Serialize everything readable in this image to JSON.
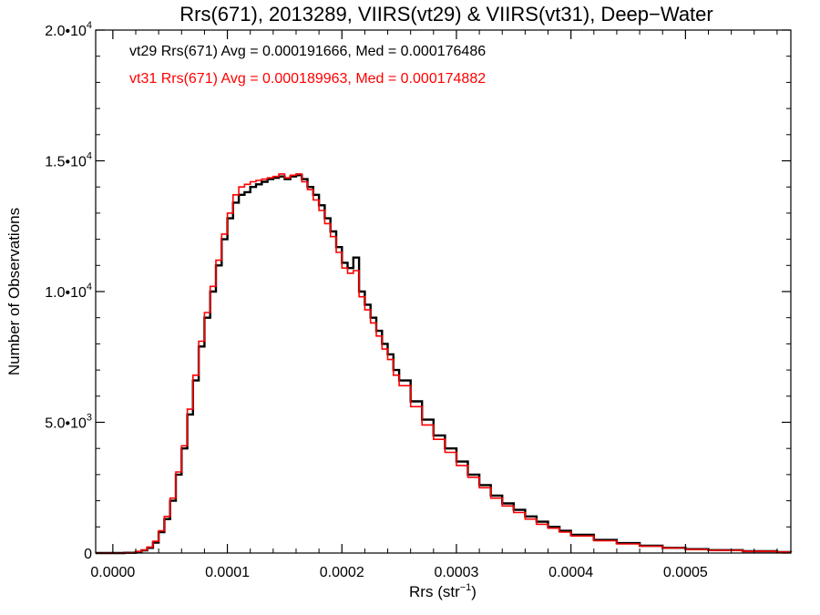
{
  "chart_data": {
    "type": "line",
    "title": "Rrs(671), 2013289, VIIRS(vt29) & VIIRS(vt31), Deep−Water",
    "xlabel": "Rrs (str",
    "xlabel_sup": "−1",
    "xlabel_end": ")",
    "ylabel": "Number of Observations",
    "xlim": [
      -1.5e-05,
      0.000592
    ],
    "ylim": [
      0,
      20000
    ],
    "x_ticks": [
      {
        "value": 0.0,
        "label": "0.0000"
      },
      {
        "value": 0.0001,
        "label": "0.0001"
      },
      {
        "value": 0.0002,
        "label": "0.0002"
      },
      {
        "value": 0.0003,
        "label": "0.0003"
      },
      {
        "value": 0.0004,
        "label": "0.0004"
      },
      {
        "value": 0.0005,
        "label": "0.0005"
      }
    ],
    "y_ticks": [
      {
        "value": 0,
        "label": "0",
        "exp": ""
      },
      {
        "value": 5000,
        "label": "5.0•10",
        "exp": "3"
      },
      {
        "value": 10000,
        "label": "1.0•10",
        "exp": "4"
      },
      {
        "value": 15000,
        "label": "1.5•10",
        "exp": "4"
      },
      {
        "value": 20000,
        "label": "2.0•10",
        "exp": "4"
      }
    ],
    "annotations": [
      {
        "text": "vt29 Rrs(671) Avg = 0.000191666, Med = 0.000176486",
        "color": "#000000"
      },
      {
        "text": "vt31 Rrs(671) Avg = 0.000189963, Med = 0.000174882",
        "color": "#ff0000"
      }
    ],
    "grid": false,
    "series": [
      {
        "name": "vt29",
        "color": "#000000",
        "render": "step",
        "x": [
          -1.5e-05,
          0.0,
          1e-05,
          2e-05,
          2.5e-05,
          3e-05,
          3.5e-05,
          4e-05,
          4.5e-05,
          5e-05,
          5.5e-05,
          6e-05,
          6.5e-05,
          7e-05,
          7.5e-05,
          8e-05,
          8.5e-05,
          9e-05,
          9.5e-05,
          0.0001,
          0.000105,
          0.00011,
          0.000115,
          0.00012,
          0.000125,
          0.00013,
          0.000135,
          0.00014,
          0.000145,
          0.00015,
          0.000155,
          0.00016,
          0.000165,
          0.00017,
          0.000175,
          0.00018,
          0.000185,
          0.00019,
          0.000195,
          0.0002,
          0.000205,
          0.00021,
          0.000215,
          0.00022,
          0.000225,
          0.00023,
          0.000235,
          0.00024,
          0.000245,
          0.00025,
          0.00026,
          0.00027,
          0.00028,
          0.00029,
          0.0003,
          0.00031,
          0.00032,
          0.00033,
          0.00034,
          0.00035,
          0.00036,
          0.00037,
          0.00038,
          0.00039,
          0.0004,
          0.00042,
          0.00044,
          0.00046,
          0.00048,
          0.0005,
          0.00052,
          0.00055,
          0.00058,
          0.000592
        ],
        "y": [
          0,
          0,
          10,
          50,
          100,
          200,
          400,
          800,
          1300,
          2000,
          3000,
          4000,
          5300,
          6600,
          7900,
          9000,
          10000,
          11000,
          12000,
          12800,
          13400,
          13700,
          13800,
          14000,
          14100,
          14200,
          14300,
          14350,
          14400,
          14300,
          14400,
          14450,
          14300,
          14000,
          13700,
          13300,
          12800,
          12300,
          11700,
          11100,
          10900,
          11300,
          10000,
          9500,
          9000,
          8500,
          8000,
          7600,
          7000,
          6600,
          5800,
          5100,
          4500,
          4000,
          3500,
          3000,
          2600,
          2200,
          1900,
          1650,
          1400,
          1200,
          1000,
          850,
          700,
          500,
          380,
          280,
          200,
          150,
          110,
          70,
          40,
          30
        ]
      },
      {
        "name": "vt31",
        "color": "#ff0000",
        "render": "step",
        "x": [
          -1.5e-05,
          0.0,
          1e-05,
          2e-05,
          2.5e-05,
          3e-05,
          3.5e-05,
          4e-05,
          4.5e-05,
          5e-05,
          5.5e-05,
          6e-05,
          6.5e-05,
          7e-05,
          7.5e-05,
          8e-05,
          8.5e-05,
          9e-05,
          9.5e-05,
          0.0001,
          0.000105,
          0.00011,
          0.000115,
          0.00012,
          0.000125,
          0.00013,
          0.000135,
          0.00014,
          0.000145,
          0.00015,
          0.000155,
          0.00016,
          0.000165,
          0.00017,
          0.000175,
          0.00018,
          0.000185,
          0.00019,
          0.000195,
          0.0002,
          0.000205,
          0.00021,
          0.000215,
          0.00022,
          0.000225,
          0.00023,
          0.000235,
          0.00024,
          0.000245,
          0.00025,
          0.00026,
          0.00027,
          0.00028,
          0.00029,
          0.0003,
          0.00031,
          0.00032,
          0.00033,
          0.00034,
          0.00035,
          0.00036,
          0.00037,
          0.00038,
          0.00039,
          0.0004,
          0.00042,
          0.00044,
          0.00046,
          0.00048,
          0.0005,
          0.00052,
          0.00055,
          0.00058,
          0.000592
        ],
        "y": [
          0,
          0,
          12,
          60,
          120,
          230,
          450,
          850,
          1400,
          2100,
          3100,
          4100,
          5500,
          6800,
          8100,
          9200,
          10200,
          11200,
          12200,
          13000,
          13700,
          14000,
          14100,
          14200,
          14250,
          14300,
          14350,
          14400,
          14500,
          14350,
          14450,
          14500,
          14200,
          13900,
          13500,
          13100,
          12600,
          12100,
          11500,
          10900,
          10700,
          10800,
          9800,
          9300,
          8800,
          8300,
          7800,
          7400,
          6800,
          6400,
          5600,
          4900,
          4350,
          3850,
          3350,
          2900,
          2500,
          2100,
          1800,
          1550,
          1300,
          1100,
          950,
          800,
          650,
          470,
          350,
          260,
          190,
          140,
          100,
          65,
          40,
          30
        ]
      }
    ]
  }
}
